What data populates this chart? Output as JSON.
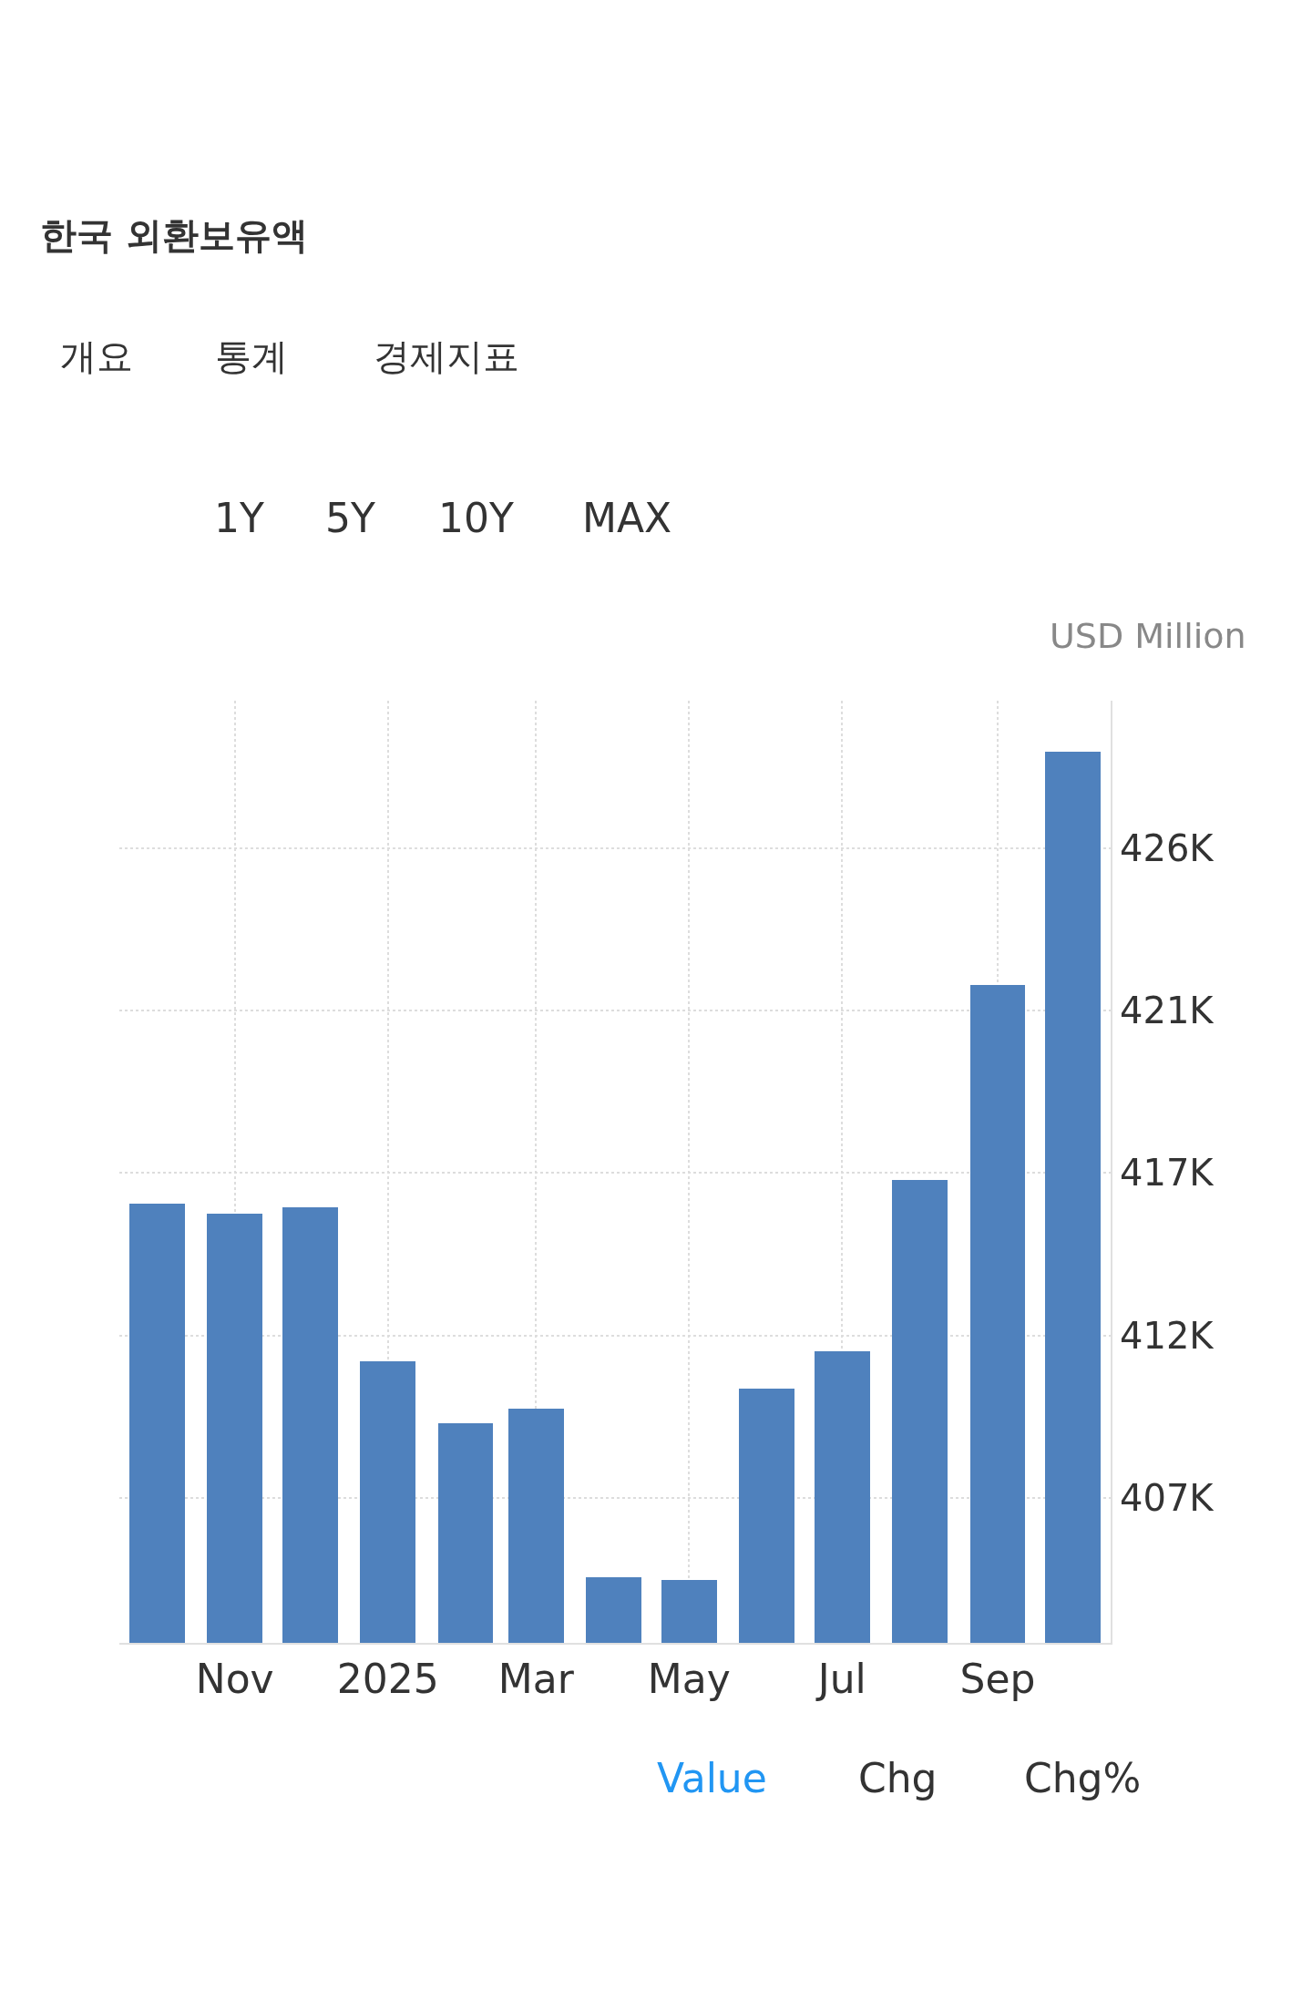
{
  "chart_data": {
    "type": "bar",
    "title": "한국 외환보유액",
    "ylabel": "USD Million",
    "annotations": [
      "개요",
      "통계",
      "경제지표",
      "1Y",
      "5Y",
      "10Y",
      "MAX",
      "Value",
      "Chg",
      "Chg%"
    ],
    "x": [
      "2024-10",
      "2024-11",
      "2024-12",
      "2025-01",
      "2025-02",
      "2025-03",
      "2025-04",
      "2025-05",
      "2025-06",
      "2025-07",
      "2025-08",
      "2025-09",
      "2025-10"
    ],
    "values": [
      415600,
      415300,
      415500,
      411000,
      409200,
      409600,
      404700,
      404600,
      410200,
      411300,
      416300,
      422000,
      428800
    ],
    "color": "#4f81bd",
    "xlim": [
      "2024-09-16",
      "2025-10-16"
    ],
    "xticks": [
      {
        "value": "2024-11",
        "label": "Nov"
      },
      {
        "value": "2025-01",
        "label": "2025"
      },
      {
        "value": "2025-03",
        "label": "Mar"
      },
      {
        "value": "2025-05",
        "label": "May"
      },
      {
        "value": "2025-07",
        "label": "Jul"
      },
      {
        "value": "2025-09",
        "label": "Sep"
      }
    ],
    "ylim": [
      402770,
      430300
    ],
    "yticks": [
      {
        "value": 407000,
        "label": "407K"
      },
      {
        "value": 411750,
        "label": "412K"
      },
      {
        "value": 416500,
        "label": "417K"
      },
      {
        "value": 421250,
        "label": "421K"
      },
      {
        "value": 426000,
        "label": "426K"
      }
    ],
    "grid": true
  }
}
